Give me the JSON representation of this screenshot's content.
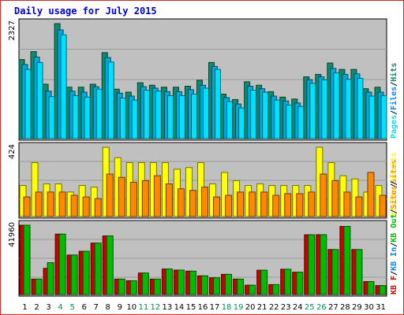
{
  "title": "Daily usage for July 2015",
  "colors": {
    "frame_border": "#d12a2a",
    "title": "#0000cc",
    "panel_bg": "#c0c0c0",
    "hits": "#0f8a6c",
    "files": "#00aadd",
    "pages": "#00e0ff",
    "sites": "#ff8800",
    "visits": "#ffff00",
    "kb_in": "#00bb00",
    "kb_out": "#cc0000",
    "kb_files": "#0088ff",
    "weekend_day": "#008f5a",
    "weekday": "#000000"
  },
  "chart_data": {
    "type": "bar",
    "categories": [
      "1",
      "2",
      "3",
      "4",
      "5",
      "6",
      "7",
      "8",
      "9",
      "10",
      "11",
      "12",
      "13",
      "14",
      "15",
      "16",
      "17",
      "18",
      "19",
      "20",
      "21",
      "22",
      "23",
      "24",
      "25",
      "26",
      "27",
      "28",
      "29",
      "30",
      "31"
    ],
    "weekend_days": [
      "4",
      "5",
      "11",
      "12",
      "18",
      "19",
      "25",
      "26"
    ],
    "panels": [
      {
        "id": "hits",
        "max_label": "2327",
        "max_value": 2327,
        "legend": [
          {
            "text": "Pages",
            "color": "#00e0ff"
          },
          {
            "text": "/",
            "color": "#000000"
          },
          {
            "text": "Files",
            "color": "#0088ff"
          },
          {
            "text": "/",
            "color": "#000000"
          },
          {
            "text": "Hits",
            "color": "#0f8a6c"
          }
        ],
        "series": [
          {
            "name": "Hits",
            "color": "#0f8a6c",
            "values": [
              1600,
              1760,
              1100,
              2327,
              1040,
              1040,
              1100,
              1740,
              1000,
              940,
              1130,
              1080,
              1040,
              1040,
              1060,
              1180,
              1540,
              900,
              790,
              1150,
              1080,
              950,
              840,
              800,
              1250,
              1300,
              1530,
              1400,
              1400,
              1010,
              1040
            ]
          },
          {
            "name": "Files",
            "color": "#00aadd",
            "values": [
              1500,
              1650,
              960,
              2200,
              960,
              940,
              1050,
              1640,
              920,
              860,
              1050,
              1020,
              950,
              950,
              990,
              1080,
              1460,
              830,
              700,
              1060,
              1010,
              860,
              760,
              720,
              1190,
              1250,
              1420,
              1300,
              1310,
              940,
              940
            ]
          },
          {
            "name": "Pages",
            "color": "#00e0ff",
            "values": [
              1400,
              1540,
              850,
              2100,
              870,
              840,
              1000,
              1550,
              820,
              780,
              980,
              960,
              870,
              870,
              900,
              1020,
              1400,
              750,
              620,
              980,
              940,
              780,
              680,
              650,
              1120,
              1190,
              1330,
              1200,
              1220,
              860,
              870
            ]
          }
        ]
      },
      {
        "id": "visits",
        "max_label": "424",
        "max_value": 424,
        "legend": [
          {
            "text": "Visits",
            "color": "#ffff00"
          },
          {
            "text": "/",
            "color": "#000000"
          },
          {
            "text": "Sites",
            "color": "#ff8800"
          }
        ],
        "series": [
          {
            "name": "Visits",
            "color": "#ffff00",
            "values": [
              190,
              330,
              200,
              200,
              150,
              190,
              180,
              424,
              360,
              330,
              330,
              330,
              330,
              290,
              300,
              330,
              200,
              270,
              220,
              190,
              200,
              190,
              190,
              190,
              190,
              424,
              330,
              250,
              230,
              150,
              190
            ]
          },
          {
            "name": "Sites",
            "color": "#ff8800",
            "values": [
              120,
              150,
              150,
              150,
              130,
              120,
              110,
              260,
              240,
              210,
              220,
              250,
              200,
              170,
              160,
              180,
              120,
              130,
              150,
              150,
              150,
              130,
              140,
              140,
              150,
              260,
              220,
              150,
              120,
              270,
              130
            ]
          }
        ]
      },
      {
        "id": "kbytes",
        "max_label": "41960",
        "max_value": 41960,
        "legend": [
          {
            "text": "KB F",
            "color": "#cc0000"
          },
          {
            "text": "/",
            "color": "#000000"
          },
          {
            "text": "KB In",
            "color": "#0088ff"
          },
          {
            "text": "/",
            "color": "#000000"
          },
          {
            "text": "KB Out",
            "color": "#00bb00"
          },
          {
            "text": "/",
            "color": "#000000"
          },
          {
            "text": "Sites",
            "color": "#ff8800"
          },
          {
            "text": "/",
            "color": "#000000"
          },
          {
            "text": "Visits",
            "color": "#ffff00"
          }
        ],
        "series": [
          {
            "name": "KB F",
            "color": "#cc0000",
            "values": [
              41960,
              9340,
              15870,
              36570,
              23910,
              26190,
              31140,
              35480,
              9340,
              8330,
              13010,
              9340,
              15460,
              14800,
              14150,
              11310,
              10120,
              12230,
              9340,
              5660,
              14740,
              6000,
              15310,
              13500,
              36180,
              36240,
              27240,
              41240,
              27240,
              7830,
              5400
            ]
          },
          {
            "name": "KB Out",
            "color": "#00bb00",
            "values": [
              41960,
              9340,
              19270,
              36570,
              23910,
              26190,
              31140,
              35480,
              9340,
              8330,
              13010,
              9340,
              15460,
              14800,
              14150,
              11310,
              10120,
              12230,
              9340,
              5660,
              14740,
              6000,
              15310,
              13500,
              36180,
              36240,
              27240,
              41240,
              27240,
              7830,
              5400
            ]
          }
        ]
      }
    ]
  }
}
